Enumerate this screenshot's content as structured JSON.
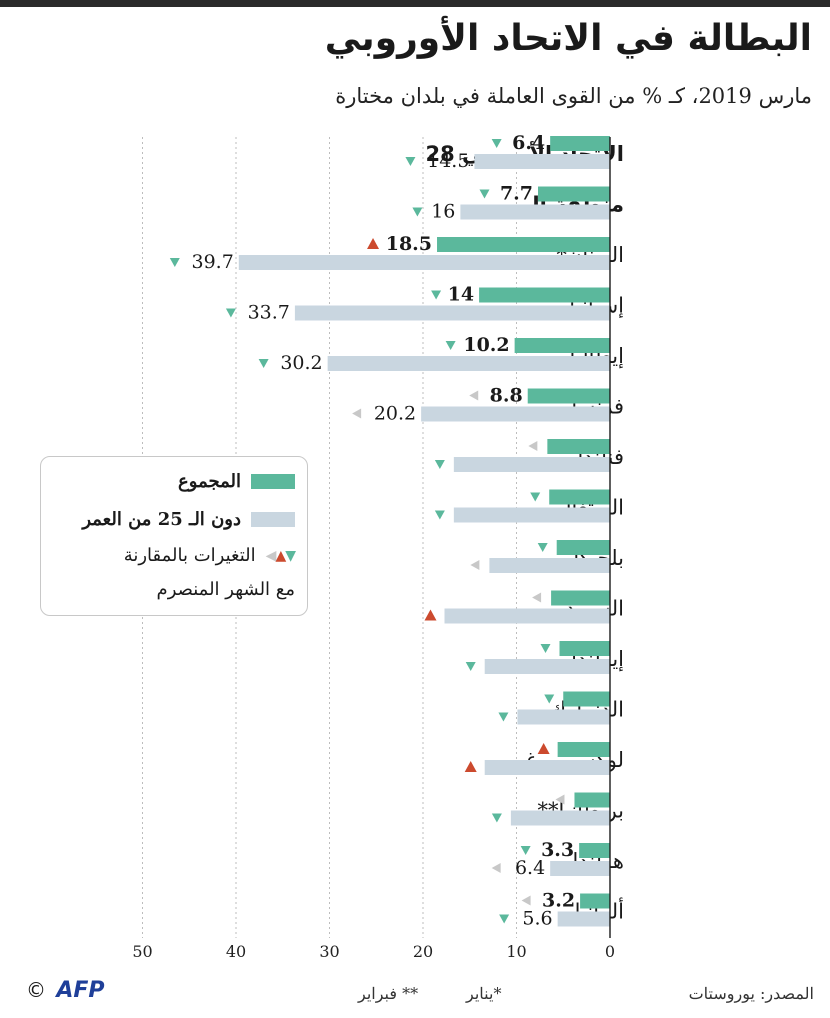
{
  "title": "البطالة في الاتحاد الأوروبي",
  "subtitle": "مارس 2019، كـ % من القوى العاملة في بلدان مختارة",
  "legend": {
    "total": "المجموع",
    "under25": "دون الـ 25 من العمر",
    "changes_line1": "التغيرات بالمقارنة",
    "changes_line2": "مع الشهر المنصرم"
  },
  "footer": {
    "source": "المصدر: يوروستات",
    "note_jan": "*يناير",
    "note_feb": "** فبراير",
    "copyright": "©",
    "agency": "AFP"
  },
  "colors": {
    "total": "#5bb89c",
    "under25": "#c9d6e0",
    "down": "#5bb89c",
    "up": "#cc4a2e",
    "same": "#c8c8c8"
  },
  "chart_data": {
    "type": "bar",
    "orientation": "horizontal",
    "x_axis_direction": "right-to-left",
    "xlim": [
      0,
      50
    ],
    "x_ticks": [
      "0",
      "10",
      "20",
      "30",
      "40",
      "50"
    ],
    "grid": true,
    "legend_position": "left-middle",
    "categories": [
      {
        "name": "الاتحاد الأوروبي 28",
        "bold": true,
        "total": 6.4,
        "total_label": "6.4",
        "total_change": "down",
        "youth": 14.5,
        "youth_label": "14.5",
        "youth_change": "down"
      },
      {
        "name": "منطقة اليورو",
        "bold": true,
        "total": 7.7,
        "total_label": "7.7",
        "total_change": "down",
        "youth": 16,
        "youth_label": "16",
        "youth_change": "down"
      },
      {
        "name": "اليونان*",
        "total": 18.5,
        "total_label": "18.5",
        "total_change": "up",
        "youth": 39.7,
        "youth_label": "39.7",
        "youth_change": "down"
      },
      {
        "name": "إسبانيا",
        "total": 14,
        "total_label": "14",
        "total_change": "down",
        "youth": 33.7,
        "youth_label": "33.7",
        "youth_change": "down"
      },
      {
        "name": "إيطاليا",
        "total": 10.2,
        "total_label": "10.2",
        "total_change": "down",
        "youth": 30.2,
        "youth_label": "30.2",
        "youth_change": "down"
      },
      {
        "name": "فرنسا",
        "total": 8.8,
        "total_label": "8.8",
        "total_change": "same",
        "youth": 20.2,
        "youth_label": "20.2",
        "youth_change": "same"
      },
      {
        "name": "فنلندا",
        "total": 6.7,
        "total_label": "",
        "total_change": "same",
        "youth": 16.7,
        "youth_label": "",
        "youth_change": "down"
      },
      {
        "name": "البرتغال",
        "total": 6.5,
        "total_label": "",
        "total_change": "down",
        "youth": 16.7,
        "youth_label": "",
        "youth_change": "down"
      },
      {
        "name": "بلجيكا",
        "total": 5.7,
        "total_label": "",
        "total_change": "down",
        "youth": 12.9,
        "youth_label": "",
        "youth_change": "same"
      },
      {
        "name": "السويد",
        "total": 6.3,
        "total_label": "",
        "total_change": "same",
        "youth": 17.7,
        "youth_label": "",
        "youth_change": "up"
      },
      {
        "name": "إيرلندا",
        "total": 5.4,
        "total_label": "",
        "total_change": "down",
        "youth": 13.4,
        "youth_label": "",
        "youth_change": "down"
      },
      {
        "name": "الدنمارك",
        "total": 5,
        "total_label": "",
        "total_change": "down",
        "youth": 9.9,
        "youth_label": "",
        "youth_change": "down"
      },
      {
        "name": "لوكسمبورغ",
        "total": 5.6,
        "total_label": "",
        "total_change": "up",
        "youth": 13.4,
        "youth_label": "",
        "youth_change": "up"
      },
      {
        "name": "بريطانيا**",
        "total": 3.8,
        "total_label": "",
        "total_change": "same",
        "youth": 10.6,
        "youth_label": "",
        "youth_change": "down"
      },
      {
        "name": "هولندا",
        "total": 3.3,
        "total_label": "3.3",
        "total_change": "down",
        "youth": 6.4,
        "youth_label": "6.4",
        "youth_change": "same"
      },
      {
        "name": "ألمانيا",
        "total": 3.2,
        "total_label": "3.2",
        "total_change": "same",
        "youth": 5.6,
        "youth_label": "5.6",
        "youth_change": "down"
      }
    ]
  }
}
